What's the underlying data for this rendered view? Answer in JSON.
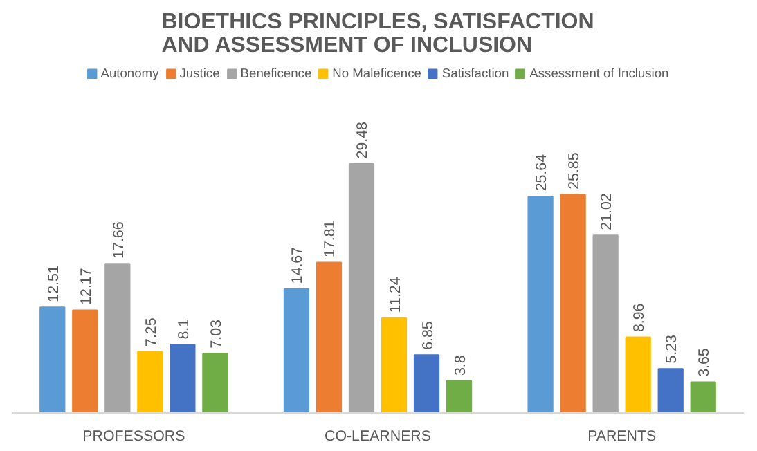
{
  "chart_data": {
    "type": "bar",
    "title": "BIOETHICS PRINCIPLES, SATISFACTION AND ASSESSMENT OF INCLUSION",
    "categories": [
      "PROFESSORS",
      "CO-LEARNERS",
      "PARENTS"
    ],
    "series": [
      {
        "name": "Autonomy",
        "color": "#5b9bd5",
        "values": [
          12.51,
          14.67,
          25.64
        ]
      },
      {
        "name": "Justice",
        "color": "#ed7d31",
        "values": [
          12.17,
          17.81,
          25.85
        ]
      },
      {
        "name": "Beneficence",
        "color": "#a5a5a5",
        "values": [
          17.66,
          29.48,
          21.02
        ]
      },
      {
        "name": "No Maleficence",
        "color": "#ffc000",
        "values": [
          7.25,
          11.24,
          8.96
        ]
      },
      {
        "name": "Satisfaction",
        "color": "#4472c4",
        "values": [
          8.1,
          6.85,
          5.23
        ]
      },
      {
        "name": "Assessment of Inclusion",
        "color": "#70ad47",
        "values": [
          7.03,
          3.8,
          3.65
        ]
      }
    ],
    "data_labels": true,
    "legend": "top",
    "grid": false
  }
}
